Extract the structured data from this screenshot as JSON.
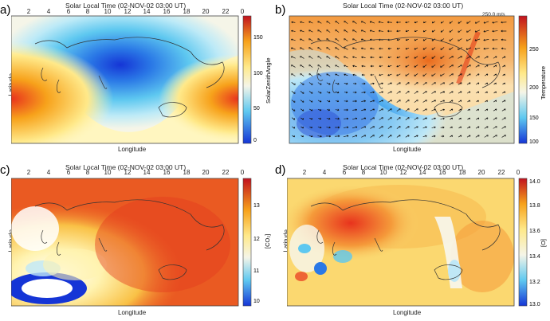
{
  "panels": [
    {
      "letter": "a)",
      "title": "Solar Local Time (02-NOV-02 03:00 UT)",
      "xlabel": "Longitude",
      "ylabel": "Latitude",
      "cbar_label": "SolarZenithAngle",
      "cbar_ticks": [
        "150",
        "100",
        "50",
        "0"
      ],
      "cbar_max": "177",
      "cbar_min": "0.0"
    },
    {
      "letter": "b)",
      "title": "Solar Local Time (02-NOV-02 03:00 UT)",
      "xlabel": "Longitude",
      "ylabel": "Latitude",
      "cbar_label": "Temperature",
      "cbar_ticks": [
        "250",
        "200",
        "150",
        "100"
      ],
      "cbar_max": "288.1",
      "cbar_min": "109.79",
      "vector_ref": "250.0 m/s"
    },
    {
      "letter": "c)",
      "title": "Solar Local Time (02-NOV-02 03:00 UT)",
      "xlabel": "Longitude",
      "ylabel": "Latitude",
      "cbar_label": "[CO₂]",
      "cbar_ticks": [
        "13",
        "12",
        "11",
        "10"
      ],
      "cbar_max": "13",
      "cbar_min": "10"
    },
    {
      "letter": "d)",
      "title": "Solar Local Time (02-NOV-02 03:00 UT)",
      "xlabel": "Longitude",
      "ylabel": "Latitude",
      "cbar_label": "[O]",
      "cbar_ticks": [
        "14.0",
        "13.8",
        "13.6",
        "13.4",
        "13.2",
        "13.0"
      ],
      "cbar_max": "14.0",
      "cbar_min": "13.12"
    }
  ],
  "x_ticks": [
    "2",
    "4",
    "6",
    "8",
    "10",
    "12",
    "14",
    "16",
    "18",
    "20",
    "22",
    "0"
  ],
  "colors": {
    "high": "#e8331d",
    "mid_high": "#f7a21b",
    "mid": "#ffe98a",
    "neutral": "#f7f7f0",
    "low": "#5ec8f0",
    "min": "#1535d6"
  },
  "chart_data": [
    {
      "type": "heatmap",
      "title": "Solar Local Time (02-NOV-02 03:00 UT)",
      "variable": "SolarZenithAngle",
      "range": [
        0,
        177
      ]
    },
    {
      "type": "heatmap",
      "title": "Solar Local Time (02-NOV-02 03:00 UT)",
      "variable": "Temperature",
      "range": [
        109.79,
        288.1
      ]
    },
    {
      "type": "heatmap",
      "title": "Solar Local Time (02-NOV-02 03:00 UT)",
      "variable": "[CO₂]",
      "range": [
        10,
        13
      ]
    },
    {
      "type": "heatmap",
      "title": "Solar Local Time (02-NOV-02 03:00 UT)",
      "variable": "[O]",
      "range": [
        13.12,
        14.0
      ]
    }
  ]
}
